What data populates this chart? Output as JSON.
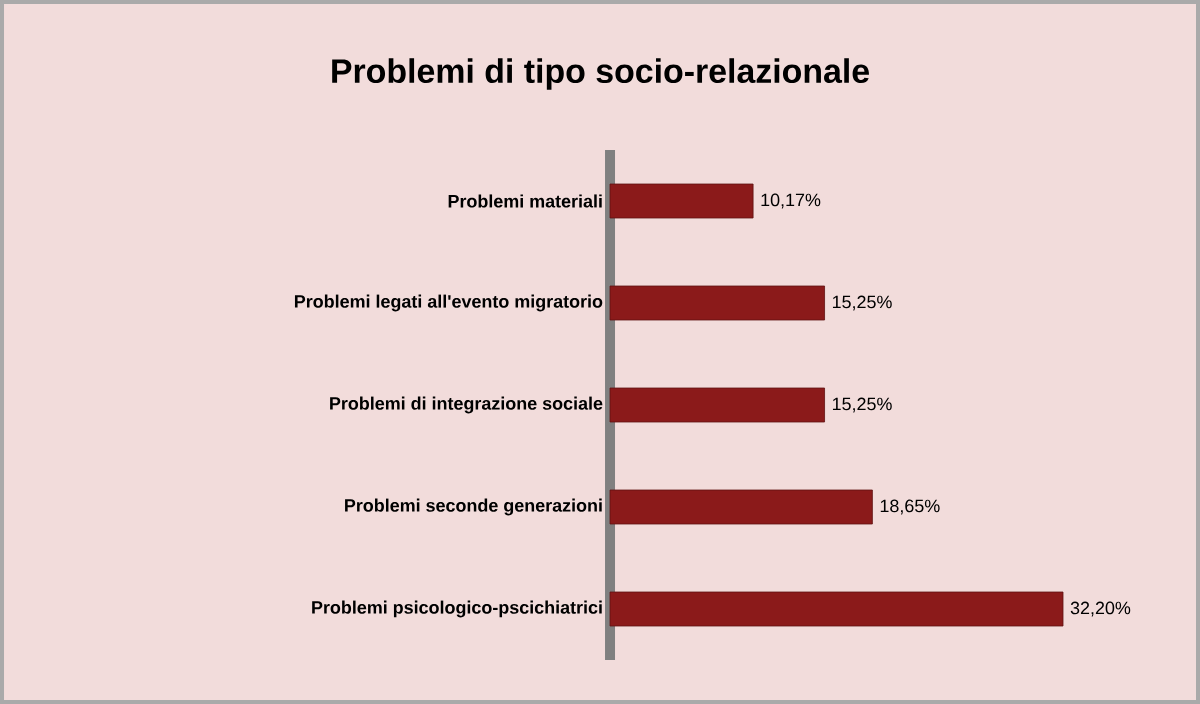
{
  "chart_data": {
    "type": "bar",
    "orientation": "horizontal",
    "title": "Problemi di tipo socio-relazionale",
    "categories": [
      "Problemi materiali",
      "Problemi legati all'evento migratorio",
      "Problemi di integrazione sociale",
      "Problemi seconde generazioni",
      "Problemi psicologico-pscichiatrici"
    ],
    "values": [
      10.17,
      15.25,
      15.25,
      18.65,
      32.2
    ],
    "value_labels": [
      "10,17%",
      "15,25%",
      "15,25%",
      "18,65%",
      "32,20%"
    ],
    "color": "#8b1a1a",
    "tick_labels": "y"
  }
}
